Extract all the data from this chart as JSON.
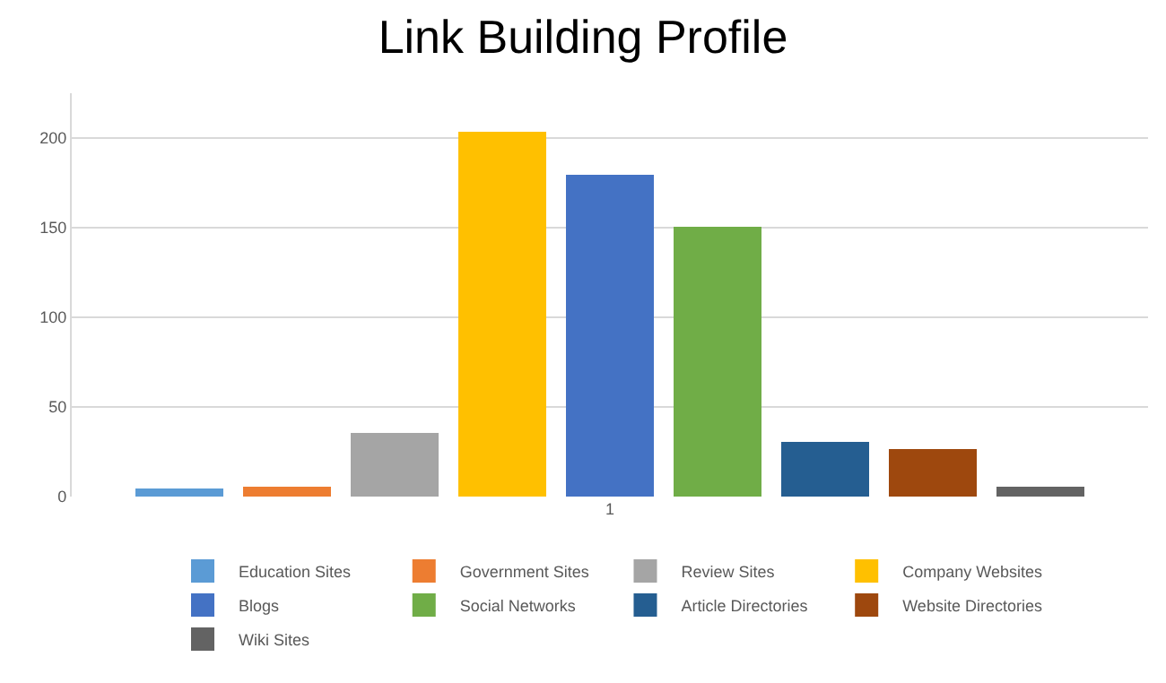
{
  "chart_data": {
    "type": "bar",
    "title": "Link Building Profile",
    "categories": [
      "1"
    ],
    "series": [
      {
        "name": "Education Sites",
        "color": "#5b9bd5",
        "values": [
          4
        ]
      },
      {
        "name": "Government Sites",
        "color": "#ed7d31",
        "values": [
          5
        ]
      },
      {
        "name": "Review Sites",
        "color": "#a5a5a5",
        "values": [
          35
        ]
      },
      {
        "name": "Company Websites",
        "color": "#ffc000",
        "values": [
          203
        ]
      },
      {
        "name": "Blogs",
        "color": "#4472c4",
        "values": [
          179
        ]
      },
      {
        "name": "Social Networks",
        "color": "#70ad47",
        "values": [
          150
        ]
      },
      {
        "name": "Article Directories",
        "color": "#255e91",
        "values": [
          30
        ]
      },
      {
        "name": "Website Directories",
        "color": "#9e480e",
        "values": [
          26
        ]
      },
      {
        "name": "Wiki Sites",
        "color": "#636363",
        "values": [
          5
        ]
      }
    ],
    "ylim": [
      0,
      225
    ],
    "yticks": [
      0,
      50,
      100,
      150,
      200
    ],
    "grid": "y",
    "legend": "bottom"
  }
}
